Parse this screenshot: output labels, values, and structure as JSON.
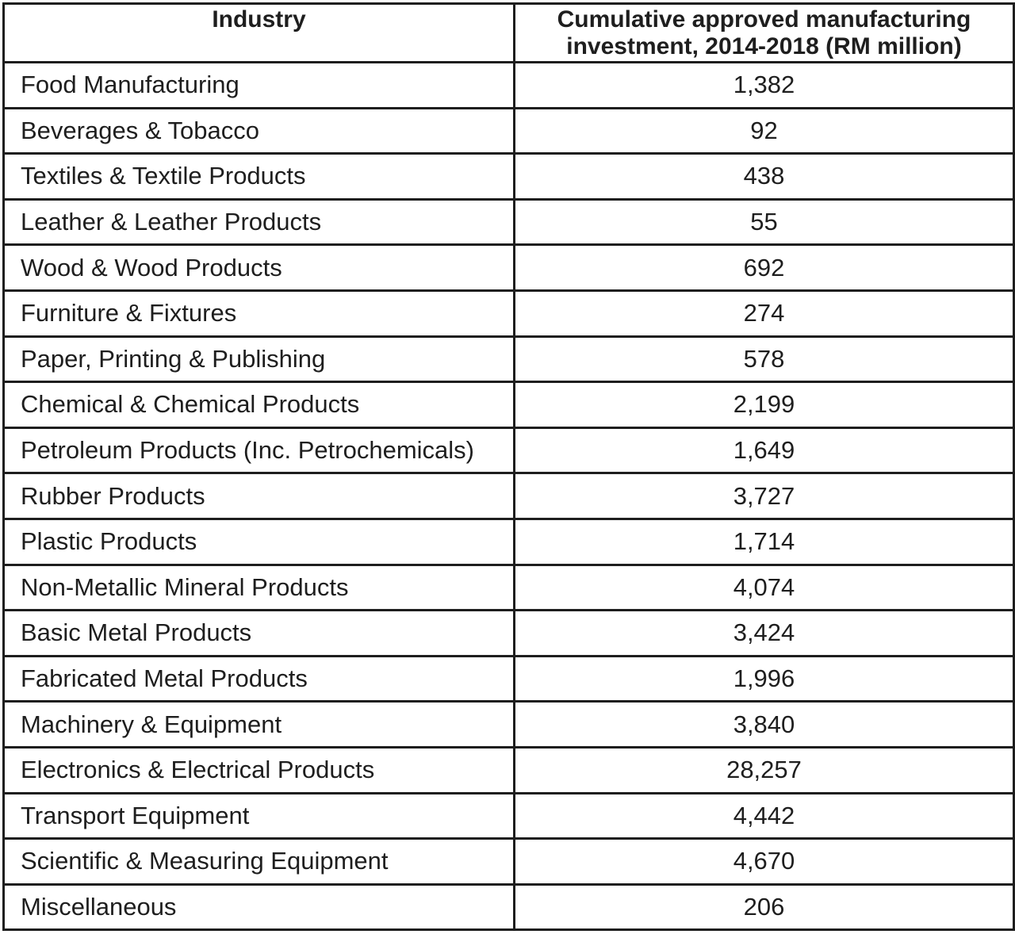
{
  "chart_data": {
    "type": "table",
    "columns": [
      "Industry",
      "Cumulative approved manufacturing investment, 2014-2018 (RM million)"
    ],
    "rows": [
      [
        "Food Manufacturing",
        "1,382"
      ],
      [
        "Beverages & Tobacco",
        "92"
      ],
      [
        "Textiles & Textile Products",
        "438"
      ],
      [
        "Leather & Leather Products",
        "55"
      ],
      [
        "Wood & Wood Products",
        "692"
      ],
      [
        "Furniture & Fixtures",
        "274"
      ],
      [
        "Paper, Printing & Publishing",
        "578"
      ],
      [
        "Chemical & Chemical Products",
        "2,199"
      ],
      [
        "Petroleum Products (Inc. Petrochemicals)",
        "1,649"
      ],
      [
        "Rubber Products",
        "3,727"
      ],
      [
        "Plastic Products",
        "1,714"
      ],
      [
        "Non-Metallic Mineral Products",
        "4,074"
      ],
      [
        "Basic Metal Products",
        "3,424"
      ],
      [
        "Fabricated Metal Products",
        "1,996"
      ],
      [
        "Machinery & Equipment",
        "3,840"
      ],
      [
        "Electronics & Electrical Products",
        "28,257"
      ],
      [
        "Transport Equipment",
        "4,442"
      ],
      [
        "Scientific & Measuring Equipment",
        "4,670"
      ],
      [
        "Miscellaneous",
        "206"
      ]
    ]
  }
}
